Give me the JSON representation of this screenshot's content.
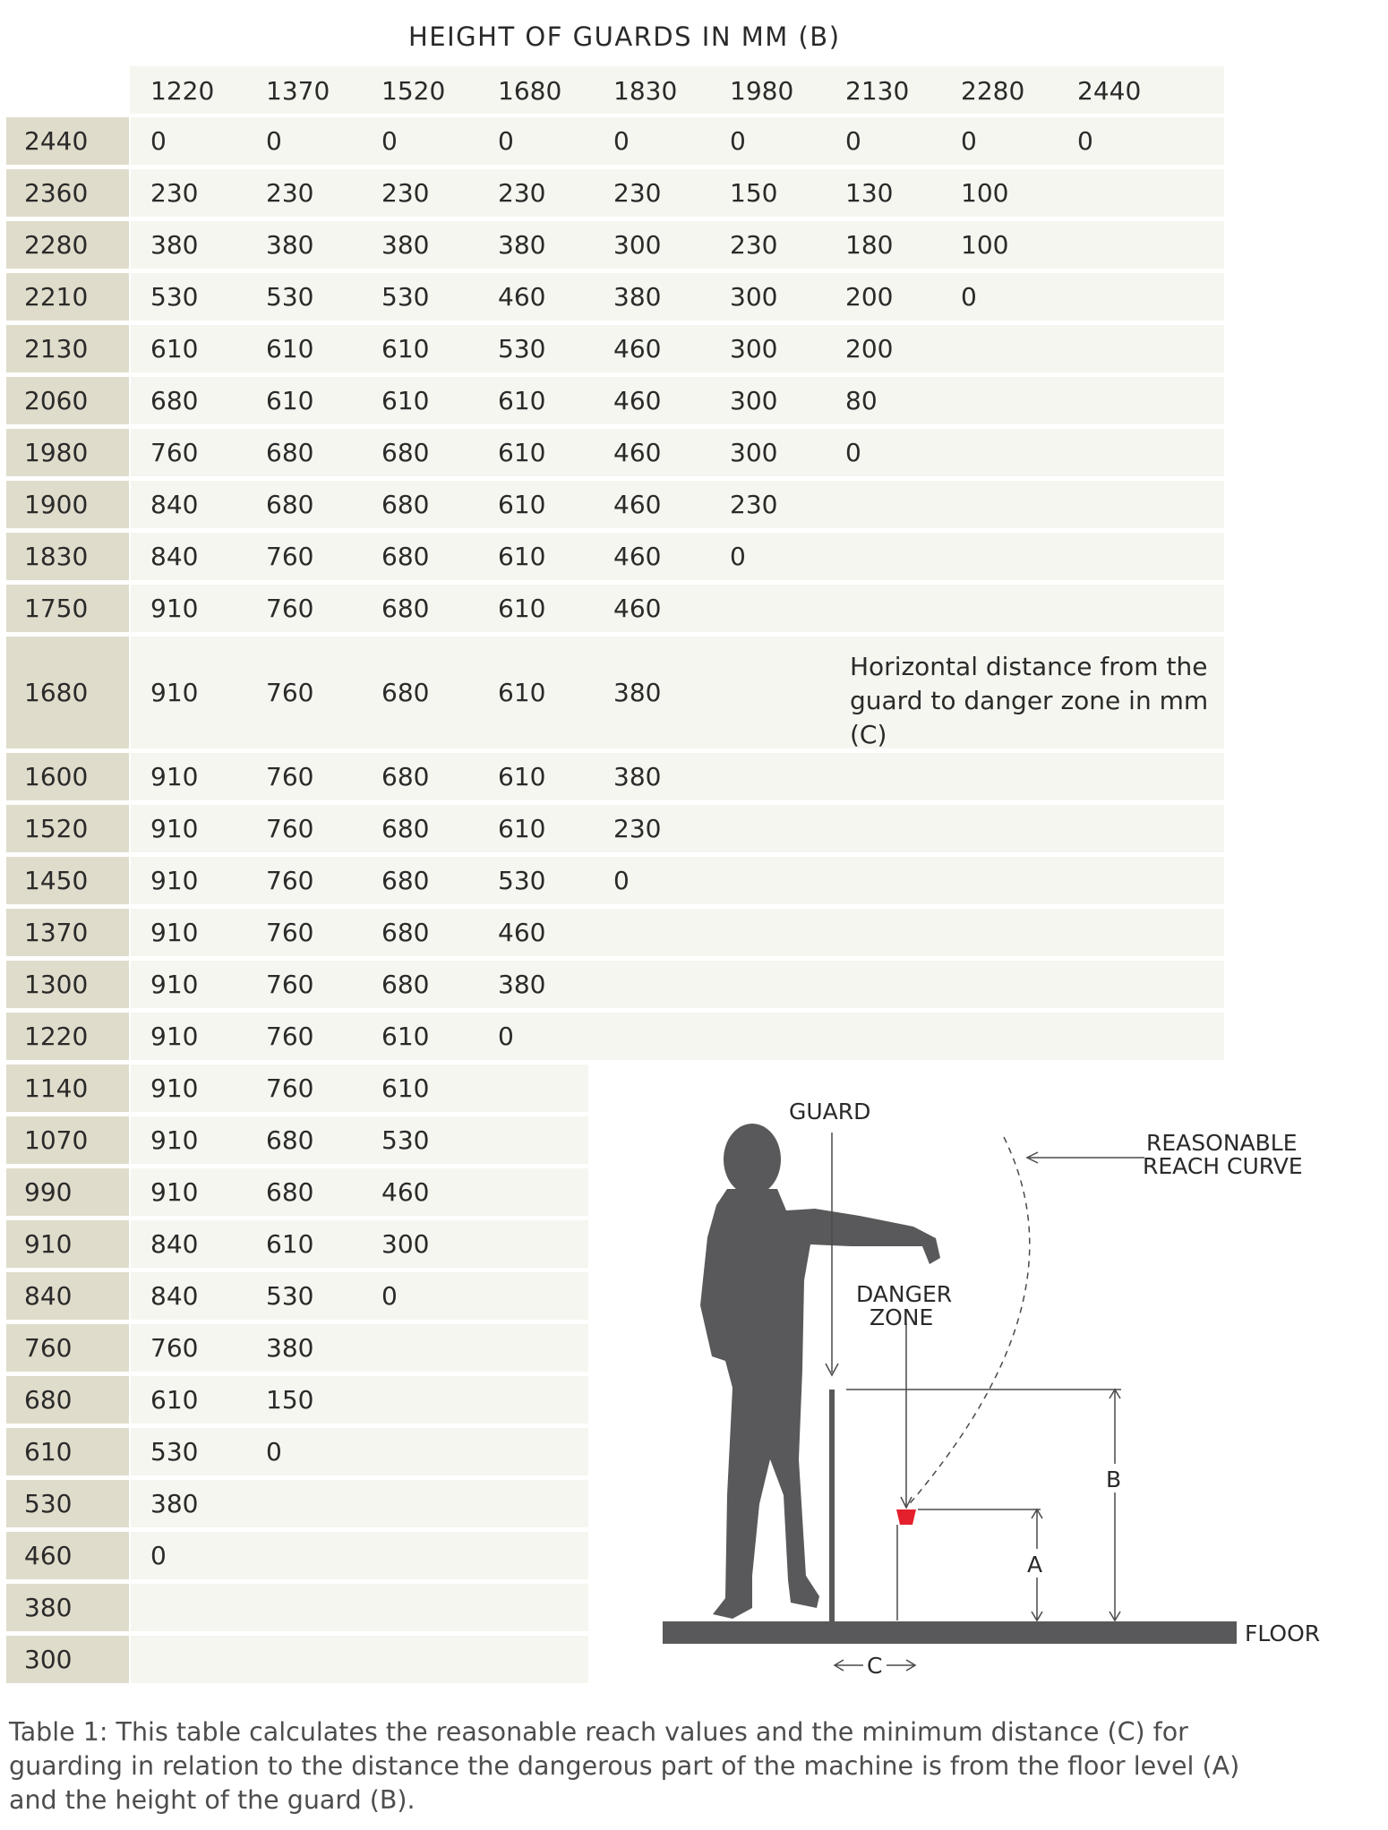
{
  "table": {
    "title": "HEIGHT OF GUARDS IN MM (B)",
    "column_headers": [
      "1220",
      "1370",
      "1520",
      "1680",
      "1830",
      "1980",
      "2130",
      "2280",
      "2440"
    ],
    "rows": [
      {
        "label": "2440",
        "values": [
          "0",
          "0",
          "0",
          "0",
          "0",
          "0",
          "0",
          "0",
          "0"
        ]
      },
      {
        "label": "2360",
        "values": [
          "230",
          "230",
          "230",
          "230",
          "230",
          "150",
          "130",
          "100"
        ]
      },
      {
        "label": "2280",
        "values": [
          "380",
          "380",
          "380",
          "380",
          "300",
          "230",
          "180",
          "100"
        ]
      },
      {
        "label": "2210",
        "values": [
          "530",
          "530",
          "530",
          "460",
          "380",
          "300",
          "200",
          "0"
        ]
      },
      {
        "label": "2130",
        "values": [
          "610",
          "610",
          "610",
          "530",
          "460",
          "300",
          "200"
        ]
      },
      {
        "label": "2060",
        "values": [
          "680",
          "610",
          "610",
          "610",
          "460",
          "300",
          "80"
        ]
      },
      {
        "label": "1980",
        "values": [
          "760",
          "680",
          "680",
          "610",
          "460",
          "300",
          "0"
        ]
      },
      {
        "label": "1900",
        "values": [
          "840",
          "680",
          "680",
          "610",
          "460",
          "230"
        ]
      },
      {
        "label": "1830",
        "values": [
          "840",
          "760",
          "680",
          "610",
          "460",
          "0"
        ]
      },
      {
        "label": "1750",
        "values": [
          "910",
          "760",
          "680",
          "610",
          "460"
        ]
      },
      {
        "label": "1680",
        "values": [
          "910",
          "760",
          "680",
          "610",
          "380"
        ]
      },
      {
        "label": "1600",
        "values": [
          "910",
          "760",
          "680",
          "610",
          "380"
        ]
      },
      {
        "label": "1520",
        "values": [
          "910",
          "760",
          "680",
          "610",
          "230"
        ]
      },
      {
        "label": "1450",
        "values": [
          "910",
          "760",
          "680",
          "530",
          "0"
        ]
      },
      {
        "label": "1370",
        "values": [
          "910",
          "760",
          "680",
          "460"
        ]
      },
      {
        "label": "1300",
        "values": [
          "910",
          "760",
          "680",
          "380"
        ]
      },
      {
        "label": "1220",
        "values": [
          "910",
          "760",
          "610",
          "0"
        ]
      },
      {
        "label": "1140",
        "values": [
          "910",
          "760",
          "610"
        ]
      },
      {
        "label": "1070",
        "values": [
          "910",
          "680",
          "530"
        ]
      },
      {
        "label": "990",
        "values": [
          "910",
          "680",
          "460"
        ]
      },
      {
        "label": "910",
        "values": [
          "840",
          "610",
          "300"
        ]
      },
      {
        "label": "840",
        "values": [
          "840",
          "530",
          "0"
        ]
      },
      {
        "label": "760",
        "values": [
          "760",
          "380"
        ]
      },
      {
        "label": "680",
        "values": [
          "610",
          "150"
        ]
      },
      {
        "label": "610",
        "values": [
          "530",
          "0"
        ]
      },
      {
        "label": "530",
        "values": [
          "380"
        ]
      },
      {
        "label": "460",
        "values": [
          "0"
        ]
      },
      {
        "label": "380",
        "values": []
      },
      {
        "label": "300",
        "values": []
      }
    ],
    "note": "Horizontal distance from the guard to danger zone in mm (C)"
  },
  "diagram": {
    "guard_label": "GUARD",
    "reach_label_1": "REASONABLE",
    "reach_label_2": "REACH CURVE",
    "danger_label_1": "DANGER",
    "danger_label_2": "ZONE",
    "label_a": "A",
    "label_b": "B",
    "label_c": "C",
    "floor_label": "FLOOR",
    "colors": {
      "figure": "#59595b",
      "danger": "#e4202c",
      "lines": "#4a4a4a"
    }
  },
  "caption": "Table 1: This table calculates the reasonable reach values and the minimum distance (C) for guarding in relation to the distance the dangerous part of the machine is from the floor level (A) and the height of the guard (B)."
}
